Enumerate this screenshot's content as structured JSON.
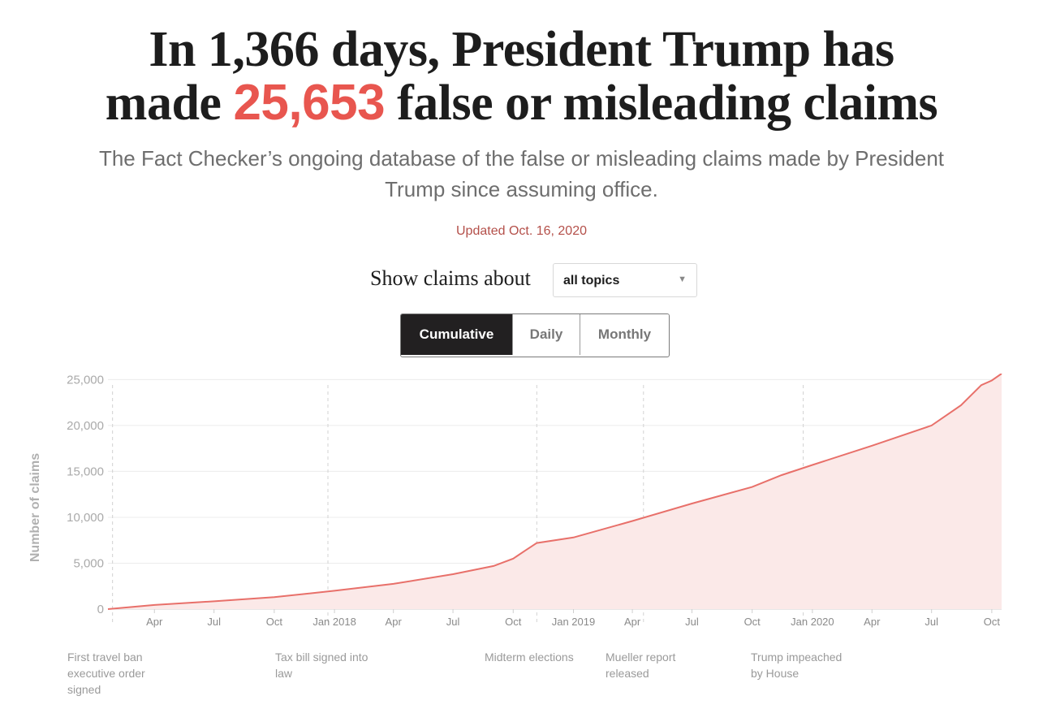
{
  "header": {
    "title_part1": "In 1,366 days, President Trump has",
    "title_part2": "made ",
    "title_count": "25,653",
    "title_part3": " false or misleading claims",
    "subtitle": "The Fact Checker’s ongoing database of the false or misleading claims made by President Trump since assuming office.",
    "updated": "Updated Oct. 16, 2020"
  },
  "filter": {
    "label": "Show claims about",
    "selected": "all topics"
  },
  "view_toggle": {
    "options": [
      "Cumulative",
      "Daily",
      "Monthly"
    ],
    "active": "Cumulative"
  },
  "colors": {
    "accent": "#e8564f",
    "line": "#e8706a",
    "area": "#fbe9e8",
    "toggle_active": "#222021"
  },
  "chart_data": {
    "type": "area",
    "title": "",
    "xlabel": "",
    "ylabel": "Number of claims",
    "ylim": [
      0,
      25653
    ],
    "yticks": [
      0,
      5000,
      10000,
      15000,
      20000,
      25000
    ],
    "ytick_labels": [
      "0",
      "5,000",
      "10,000",
      "15,000",
      "20,000",
      "25,000"
    ],
    "xlim": [
      "2017-01-20",
      "2020-10-16"
    ],
    "xticks": [
      {
        "date": "2017-04-01",
        "label": "Apr"
      },
      {
        "date": "2017-07-01",
        "label": "Jul"
      },
      {
        "date": "2017-10-01",
        "label": "Oct"
      },
      {
        "date": "2018-01-01",
        "label": "Jan 2018"
      },
      {
        "date": "2018-04-01",
        "label": "Apr"
      },
      {
        "date": "2018-07-01",
        "label": "Jul"
      },
      {
        "date": "2018-10-01",
        "label": "Oct"
      },
      {
        "date": "2019-01-01",
        "label": "Jan 2019"
      },
      {
        "date": "2019-04-01",
        "label": "Apr"
      },
      {
        "date": "2019-07-01",
        "label": "Jul"
      },
      {
        "date": "2019-10-01",
        "label": "Oct"
      },
      {
        "date": "2020-01-01",
        "label": "Jan 2020"
      },
      {
        "date": "2020-04-01",
        "label": "Apr"
      },
      {
        "date": "2020-07-01",
        "label": "Jul"
      },
      {
        "date": "2020-10-01",
        "label": "Oct"
      }
    ],
    "series": [
      {
        "values": [
          {
            "x": "2017-01-20",
            "y": 0
          },
          {
            "x": "2017-04-01",
            "y": 450
          },
          {
            "x": "2017-07-01",
            "y": 850
          },
          {
            "x": "2017-10-01",
            "y": 1300
          },
          {
            "x": "2018-01-01",
            "y": 2000
          },
          {
            "x": "2018-04-01",
            "y": 2750
          },
          {
            "x": "2018-07-01",
            "y": 3800
          },
          {
            "x": "2018-09-01",
            "y": 4700
          },
          {
            "x": "2018-10-01",
            "y": 5500
          },
          {
            "x": "2018-10-20",
            "y": 6400
          },
          {
            "x": "2018-11-06",
            "y": 7200
          },
          {
            "x": "2019-01-01",
            "y": 7800
          },
          {
            "x": "2019-04-01",
            "y": 9600
          },
          {
            "x": "2019-07-01",
            "y": 11500
          },
          {
            "x": "2019-10-01",
            "y": 13300
          },
          {
            "x": "2019-11-15",
            "y": 14600
          },
          {
            "x": "2020-01-01",
            "y": 15700
          },
          {
            "x": "2020-04-01",
            "y": 17800
          },
          {
            "x": "2020-07-01",
            "y": 20000
          },
          {
            "x": "2020-08-15",
            "y": 22200
          },
          {
            "x": "2020-09-15",
            "y": 24400
          },
          {
            "x": "2020-10-01",
            "y": 24900
          },
          {
            "x": "2020-10-16",
            "y": 25653
          }
        ]
      }
    ],
    "annotations": [
      {
        "date": "2017-01-27",
        "lines": [
          "First travel ban",
          "executive order",
          "signed"
        ]
      },
      {
        "date": "2017-12-22",
        "lines": [
          "Tax bill signed into",
          "law"
        ]
      },
      {
        "date": "2018-11-06",
        "lines": [
          "Midterm elections"
        ]
      },
      {
        "date": "2019-04-18",
        "lines": [
          "Mueller report",
          "released"
        ]
      },
      {
        "date": "2019-12-18",
        "lines": [
          "Trump impeached",
          "by House"
        ]
      }
    ]
  }
}
